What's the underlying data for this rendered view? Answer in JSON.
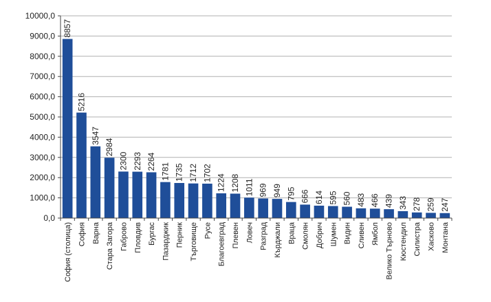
{
  "chart_data": {
    "type": "bar",
    "title": "",
    "xlabel": "",
    "ylabel": "",
    "ylim": [
      0,
      10000
    ],
    "yticks": [
      0,
      1000,
      2000,
      3000,
      4000,
      5000,
      6000,
      7000,
      8000,
      9000,
      10000
    ],
    "ytick_labels": [
      "0,0",
      "1000,0",
      "2000,0",
      "3000,0",
      "4000,0",
      "5000,0",
      "6000,0",
      "7000,0",
      "8000,0",
      "9000,0",
      "10000,0"
    ],
    "grid": true,
    "legend": "none",
    "bar_color": "#1f4e99",
    "grid_color": "#b0b0b0",
    "categories": [
      "София (столица)",
      "София",
      "Варна",
      "Стара Загора",
      "Габрово",
      "Пловдив",
      "Бургас",
      "Пазарджик",
      "Перник",
      "Търговище",
      "Русе",
      "Благоевград",
      "Плевен",
      "Ловеч",
      "Разград",
      "Кърджали",
      "Враца",
      "Смолян",
      "Добрич",
      "Шумен",
      "Видин",
      "Сливен",
      "Ямбол",
      "Велико Търново",
      "Кюстендил",
      "Силистра",
      "Хасково",
      "Монтана"
    ],
    "values": [
      8857,
      5216,
      3547,
      2984,
      2300,
      2293,
      2264,
      1781,
      1735,
      1712,
      1702,
      1224,
      1208,
      1011,
      969,
      949,
      795,
      666,
      614,
      595,
      560,
      483,
      466,
      439,
      343,
      278,
      259,
      247
    ]
  }
}
